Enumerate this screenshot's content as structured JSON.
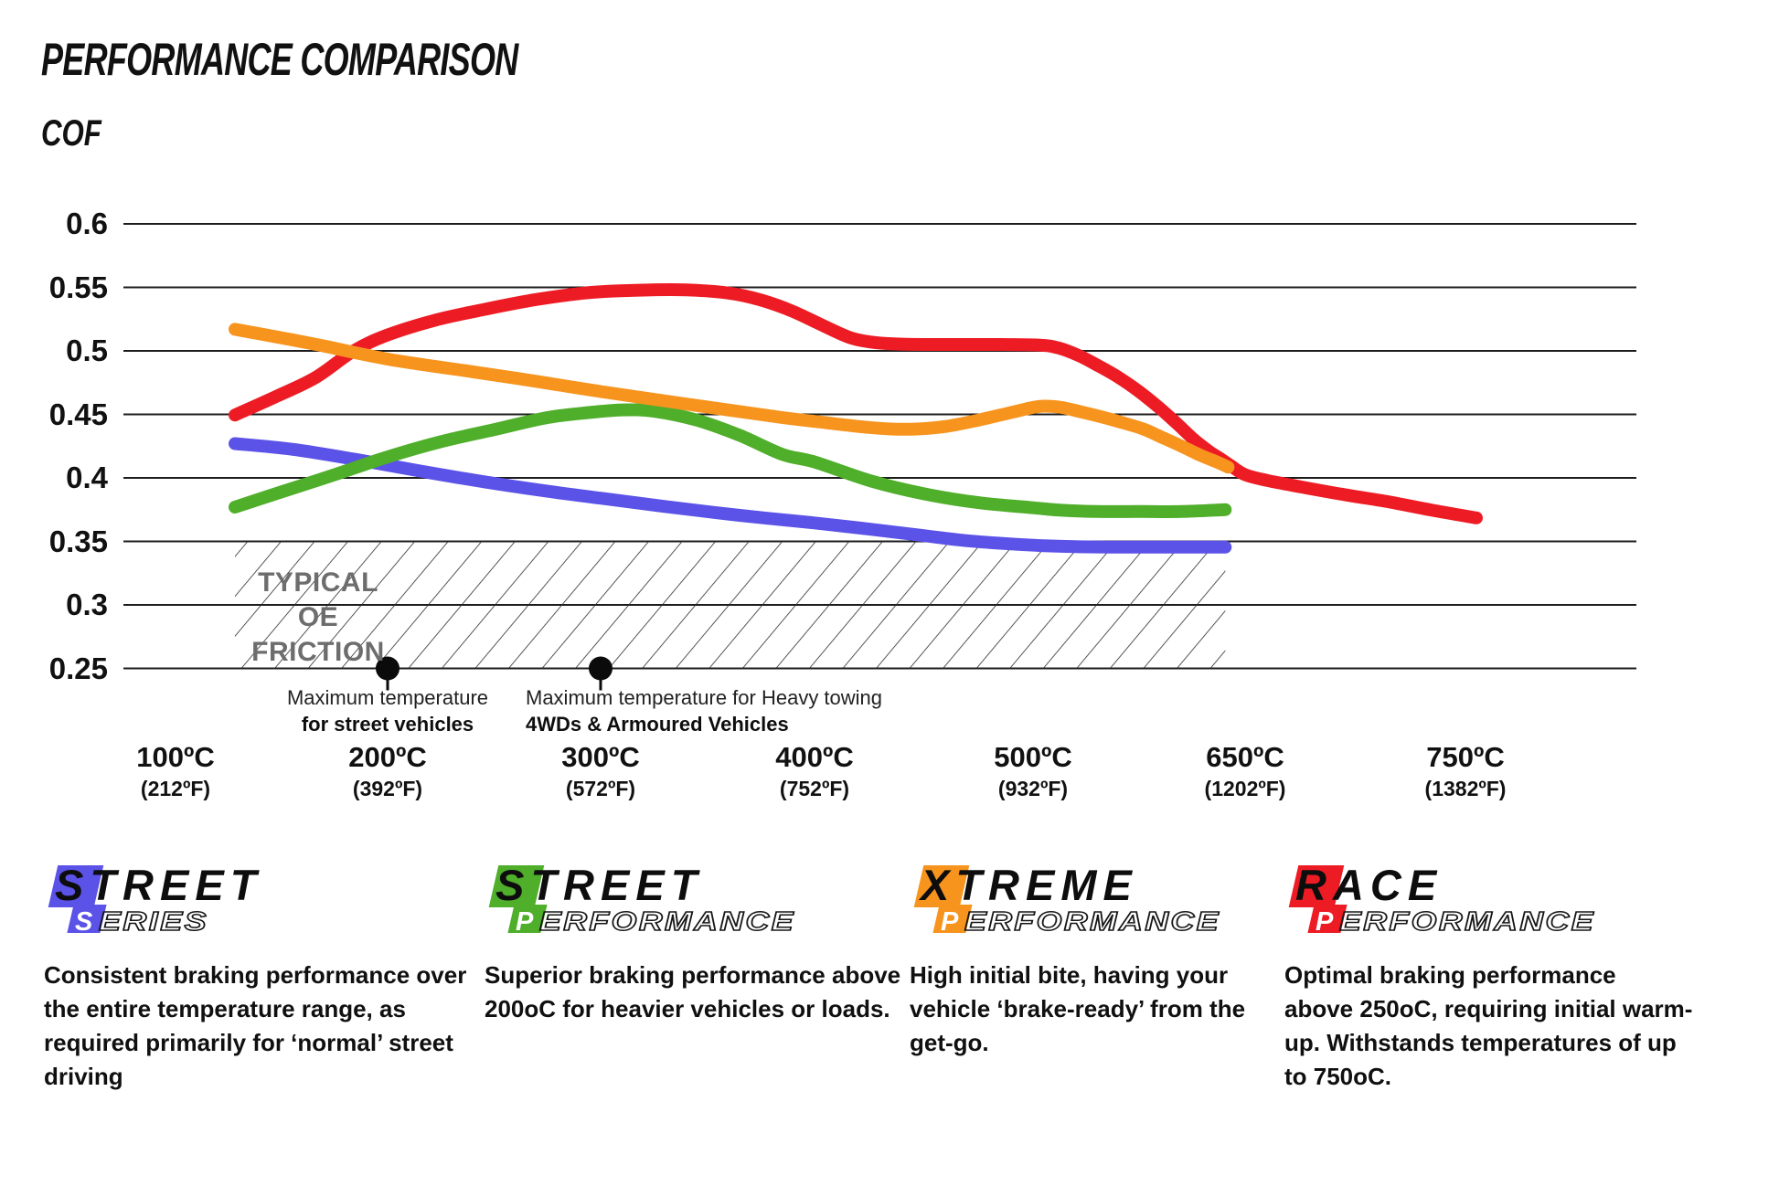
{
  "title": "PERFORMANCE COMPARISON",
  "subtitle": "COF",
  "chart_data": {
    "type": "line",
    "ylabel": "COF",
    "ylim": [
      0.25,
      0.6
    ],
    "grid": true,
    "legend_position": "bottom",
    "yticks": [
      0.6,
      0.55,
      0.5,
      0.45,
      0.4,
      0.35,
      0.3,
      0.25
    ],
    "ytick_labels": [
      "0.6",
      "0.55",
      "0.5",
      "0.45",
      "0.4",
      "0.35",
      "0.3",
      "0.25"
    ],
    "x_ticks": [
      {
        "c": 100,
        "label_c": "100ºC",
        "label_f": "(212ºF)"
      },
      {
        "c": 200,
        "label_c": "200ºC",
        "label_f": "(392ºF)"
      },
      {
        "c": 300,
        "label_c": "300ºC",
        "label_f": "(572ºF)"
      },
      {
        "c": 400,
        "label_c": "400ºC",
        "label_f": "(752ºF)"
      },
      {
        "c": 500,
        "label_c": "500ºC",
        "label_f": "(932ºF)"
      },
      {
        "c": 650,
        "label_c": "650ºC",
        "label_f": "(1202ºF)"
      },
      {
        "c": 750,
        "label_c": "750ºC",
        "label_f": "(1382ºF)"
      }
    ],
    "series": [
      {
        "name": "Street Series",
        "color": "#5b52e8",
        "z": 0,
        "points": [
          [
            128,
            0.427
          ],
          [
            155,
            0.4225
          ],
          [
            185,
            0.4145
          ],
          [
            215,
            0.4055
          ],
          [
            245,
            0.397
          ],
          [
            275,
            0.3895
          ],
          [
            300,
            0.384
          ],
          [
            330,
            0.3775
          ],
          [
            365,
            0.3705
          ],
          [
            400,
            0.3645
          ],
          [
            426,
            0.3595
          ],
          [
            450,
            0.3545
          ],
          [
            470,
            0.3505
          ],
          [
            490,
            0.348
          ],
          [
            510,
            0.3465
          ],
          [
            530,
            0.3458
          ],
          [
            560,
            0.3455
          ],
          [
            600,
            0.3455
          ],
          [
            636,
            0.3455
          ]
        ]
      },
      {
        "name": "Street Performance",
        "color": "#4fae2a",
        "z": 2,
        "points": [
          [
            128,
            0.377
          ],
          [
            150,
            0.389
          ],
          [
            175,
            0.4025
          ],
          [
            200,
            0.4165
          ],
          [
            225,
            0.4285
          ],
          [
            250,
            0.438
          ],
          [
            275,
            0.4475
          ],
          [
            295,
            0.4515
          ],
          [
            310,
            0.4535
          ],
          [
            325,
            0.4525
          ],
          [
            345,
            0.4455
          ],
          [
            365,
            0.4335
          ],
          [
            385,
            0.4185
          ],
          [
            400,
            0.4125
          ],
          [
            426,
            0.3975
          ],
          [
            450,
            0.3875
          ],
          [
            475,
            0.3805
          ],
          [
            500,
            0.3765
          ],
          [
            520,
            0.3745
          ],
          [
            545,
            0.3735
          ],
          [
            575,
            0.3735
          ],
          [
            605,
            0.3735
          ],
          [
            636,
            0.375
          ]
        ]
      },
      {
        "name": "Xtreme Performance",
        "color": "#f7941e",
        "z": 3,
        "points": [
          [
            128,
            0.517
          ],
          [
            165,
            0.5055
          ],
          [
            200,
            0.4935
          ],
          [
            240,
            0.4835
          ],
          [
            270,
            0.476
          ],
          [
            300,
            0.468
          ],
          [
            345,
            0.457
          ],
          [
            385,
            0.4475
          ],
          [
            405,
            0.4435
          ],
          [
            420,
            0.4405
          ],
          [
            435,
            0.4385
          ],
          [
            447,
            0.4385
          ],
          [
            460,
            0.4405
          ],
          [
            475,
            0.4455
          ],
          [
            490,
            0.4515
          ],
          [
            500,
            0.4555
          ],
          [
            508,
            0.4565
          ],
          [
            520,
            0.4555
          ],
          [
            532,
            0.4525
          ],
          [
            545,
            0.449
          ],
          [
            560,
            0.4445
          ],
          [
            578,
            0.4385
          ],
          [
            592,
            0.4315
          ],
          [
            605,
            0.425
          ],
          [
            618,
            0.418
          ],
          [
            630,
            0.4125
          ],
          [
            638,
            0.4085
          ]
        ]
      },
      {
        "name": "Race Performance",
        "color": "#ed1c24",
        "z": 1,
        "points": [
          [
            128,
            0.4495
          ],
          [
            148,
            0.4645
          ],
          [
            166,
            0.479
          ],
          [
            184,
            0.5
          ],
          [
            200,
            0.5125
          ],
          [
            222,
            0.524
          ],
          [
            245,
            0.5325
          ],
          [
            270,
            0.5405
          ],
          [
            295,
            0.546
          ],
          [
            318,
            0.5478
          ],
          [
            340,
            0.548
          ],
          [
            360,
            0.5455
          ],
          [
            375,
            0.54
          ],
          [
            390,
            0.531
          ],
          [
            405,
            0.519
          ],
          [
            417,
            0.51
          ],
          [
            428,
            0.5065
          ],
          [
            442,
            0.5052
          ],
          [
            460,
            0.505
          ],
          [
            485,
            0.505
          ],
          [
            505,
            0.5045
          ],
          [
            518,
            0.5023
          ],
          [
            532,
            0.4965
          ],
          [
            545,
            0.489
          ],
          [
            560,
            0.4795
          ],
          [
            575,
            0.468
          ],
          [
            590,
            0.4545
          ],
          [
            602,
            0.4425
          ],
          [
            614,
            0.43
          ],
          [
            625,
            0.4205
          ],
          [
            632,
            0.4155
          ],
          [
            640,
            0.4095
          ],
          [
            650,
            0.4025
          ],
          [
            660,
            0.398
          ],
          [
            675,
            0.393
          ],
          [
            695,
            0.3868
          ],
          [
            715,
            0.3812
          ],
          [
            735,
            0.3745
          ],
          [
            755,
            0.3685
          ]
        ]
      }
    ],
    "oe_band": {
      "cof_top": 0.35,
      "cof_bottom": 0.25,
      "t_start": 128,
      "t_end": 636,
      "label_line1": "TYPICAL OE",
      "label_line2": "FRICTION"
    },
    "markers": [
      {
        "t": 200,
        "cof": 0.25,
        "line1": "Maximum temperature",
        "line2": "for street vehicles"
      },
      {
        "t": 300,
        "cof": 0.25,
        "line1": "Maximum temperature for Heavy towing",
        "line2": "4WDs & Armoured Vehicles"
      }
    ]
  },
  "legend": [
    {
      "word": "STREET",
      "sub_first": "S",
      "sub_rest": "ERIES",
      "color": "#5b52e8",
      "lines": [
        "Consistent braking performance over",
        "the entire temperature range, as",
        "required primarily for ‘normal’ street",
        "driving"
      ]
    },
    {
      "word": "STREET",
      "sub_first": "P",
      "sub_rest": "ERFORMANCE",
      "color": "#4fae2a",
      "lines": [
        "Superior braking performance above",
        "200oC for heavier vehicles or loads.",
        "",
        ""
      ]
    },
    {
      "word": "XTREME",
      "sub_first": "P",
      "sub_rest": "ERFORMANCE",
      "color": "#f7941e",
      "lines": [
        "High initial bite, having your",
        "vehicle ‘brake-ready’ from the",
        "get-go.",
        ""
      ]
    },
    {
      "word": "RACE",
      "sub_first": "P",
      "sub_rest": "ERFORMANCE",
      "color": "#ed1c24",
      "lines": [
        "Optimal braking performance",
        "above 250oC, requiring initial warm-",
        "up. Withstands temperatures of up",
        "to 750oC."
      ]
    }
  ]
}
